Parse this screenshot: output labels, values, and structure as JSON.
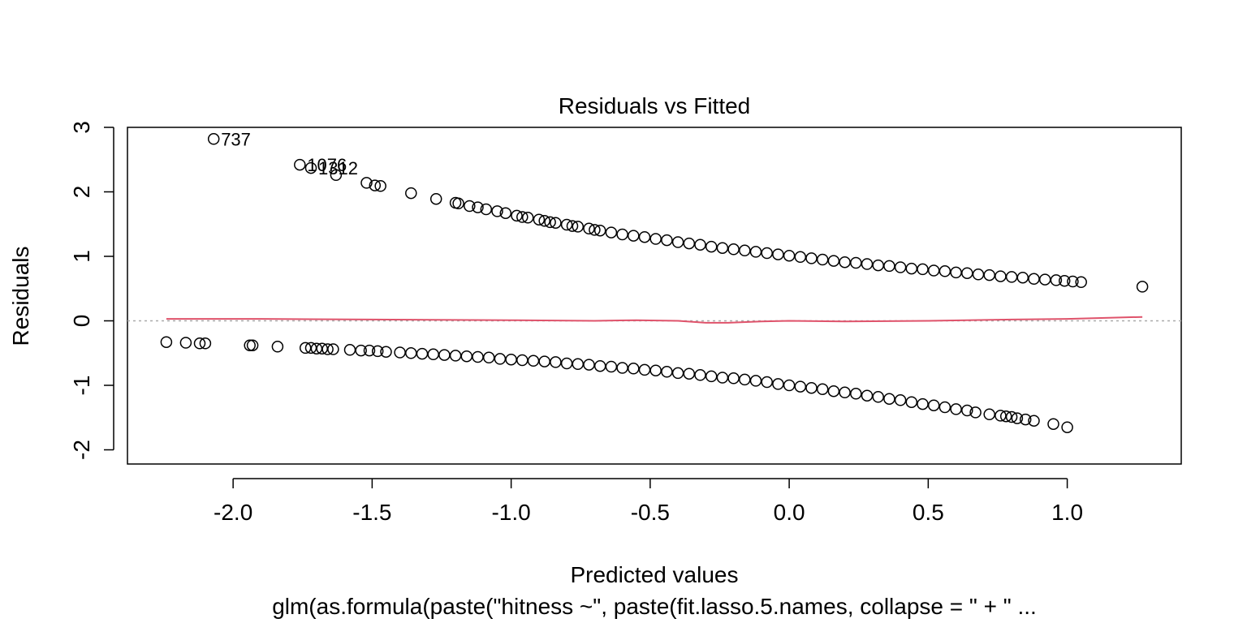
{
  "chart_data": {
    "type": "scatter",
    "title": "Residuals vs Fitted",
    "xlabel": "Predicted values",
    "ylabel": "Residuals",
    "subtitle": "glm(as.formula(paste(\"hitness ~\", paste(fit.lasso.5.names, collapse = \" + \" ...",
    "xlim": [
      -2.38,
      1.41
    ],
    "ylim": [
      -2.22,
      3.0
    ],
    "x_ticks": [
      -2.0,
      -1.5,
      -1.0,
      -0.5,
      0.0,
      0.5,
      1.0
    ],
    "x_tick_labels": [
      "-2.0",
      "-1.5",
      "-1.0",
      "-0.5",
      "0.0",
      "0.5",
      "1.0"
    ],
    "y_ticks": [
      -2,
      -1,
      0,
      1,
      2,
      3
    ],
    "y_tick_labels": [
      "-2",
      "-1",
      "0",
      "1",
      "2",
      "3"
    ],
    "reference_line": {
      "y": 0,
      "style": "dotted",
      "color": "#aaaaaa"
    },
    "colors": {
      "points": "#000000",
      "smoother": "#df536b"
    },
    "series": [
      {
        "marker": "open-circle",
        "x": [
          -2.07,
          -1.76,
          -1.72,
          -1.63,
          -1.52,
          -1.49,
          -1.47,
          -1.36,
          -1.27,
          -1.2,
          -1.19,
          -1.15,
          -1.12,
          -1.09,
          -1.05,
          -1.02,
          -0.98,
          -0.96,
          -0.94,
          -0.9,
          -0.88,
          -0.86,
          -0.84,
          -0.8,
          -0.78,
          -0.76,
          -0.72,
          -0.7,
          -0.68,
          -0.64,
          -0.6,
          -0.56,
          -0.52,
          -0.48,
          -0.44,
          -0.4,
          -0.36,
          -0.32,
          -0.28,
          -0.24,
          -0.2,
          -0.16,
          -0.12,
          -0.08,
          -0.04,
          0.0,
          0.04,
          0.08,
          0.12,
          0.16,
          0.2,
          0.24,
          0.28,
          0.32,
          0.36,
          0.4,
          0.44,
          0.48,
          0.52,
          0.56,
          0.6,
          0.64,
          0.68,
          0.72,
          0.76,
          0.8,
          0.84,
          0.88,
          0.92,
          0.96,
          0.99,
          1.02,
          1.05,
          1.27,
          -2.24,
          -2.17,
          -2.12,
          -2.1,
          -1.94,
          -1.93,
          -1.84,
          -1.74,
          -1.72,
          -1.7,
          -1.68,
          -1.66,
          -1.64,
          -1.58,
          -1.54,
          -1.51,
          -1.48,
          -1.45,
          -1.4,
          -1.36,
          -1.32,
          -1.28,
          -1.24,
          -1.2,
          -1.16,
          -1.12,
          -1.08,
          -1.04,
          -1.0,
          -0.96,
          -0.92,
          -0.88,
          -0.84,
          -0.8,
          -0.76,
          -0.72,
          -0.68,
          -0.64,
          -0.6,
          -0.56,
          -0.52,
          -0.48,
          -0.44,
          -0.4,
          -0.36,
          -0.32,
          -0.28,
          -0.24,
          -0.2,
          -0.16,
          -0.12,
          -0.08,
          -0.04,
          0.0,
          0.04,
          0.08,
          0.12,
          0.16,
          0.2,
          0.24,
          0.28,
          0.32,
          0.36,
          0.4,
          0.44,
          0.48,
          0.52,
          0.56,
          0.6,
          0.64,
          0.67,
          0.72,
          0.76,
          0.78,
          0.8,
          0.82,
          0.85,
          0.88,
          0.95,
          1.0
        ],
        "y": [
          2.82,
          2.42,
          2.37,
          2.26,
          2.14,
          2.1,
          2.09,
          1.98,
          1.89,
          1.83,
          1.82,
          1.78,
          1.76,
          1.73,
          1.7,
          1.67,
          1.63,
          1.61,
          1.6,
          1.57,
          1.55,
          1.53,
          1.52,
          1.49,
          1.47,
          1.46,
          1.43,
          1.41,
          1.4,
          1.37,
          1.34,
          1.32,
          1.3,
          1.27,
          1.25,
          1.22,
          1.2,
          1.18,
          1.15,
          1.13,
          1.11,
          1.09,
          1.07,
          1.05,
          1.03,
          1.01,
          0.99,
          0.97,
          0.95,
          0.93,
          0.91,
          0.9,
          0.88,
          0.86,
          0.85,
          0.83,
          0.81,
          0.8,
          0.78,
          0.77,
          0.75,
          0.74,
          0.72,
          0.71,
          0.69,
          0.68,
          0.67,
          0.65,
          0.64,
          0.63,
          0.62,
          0.61,
          0.6,
          0.53,
          -0.33,
          -0.34,
          -0.35,
          -0.35,
          -0.38,
          -0.38,
          -0.4,
          -0.42,
          -0.42,
          -0.43,
          -0.43,
          -0.44,
          -0.44,
          -0.45,
          -0.46,
          -0.46,
          -0.47,
          -0.48,
          -0.49,
          -0.5,
          -0.51,
          -0.52,
          -0.53,
          -0.54,
          -0.55,
          -0.56,
          -0.57,
          -0.59,
          -0.6,
          -0.61,
          -0.62,
          -0.63,
          -0.64,
          -0.66,
          -0.67,
          -0.68,
          -0.7,
          -0.71,
          -0.73,
          -0.74,
          -0.76,
          -0.77,
          -0.79,
          -0.81,
          -0.82,
          -0.84,
          -0.86,
          -0.88,
          -0.89,
          -0.91,
          -0.93,
          -0.95,
          -0.98,
          -1.0,
          -1.02,
          -1.04,
          -1.06,
          -1.09,
          -1.11,
          -1.13,
          -1.16,
          -1.18,
          -1.21,
          -1.23,
          -1.26,
          -1.29,
          -1.31,
          -1.34,
          -1.37,
          -1.39,
          -1.42,
          -1.45,
          -1.47,
          -1.48,
          -1.49,
          -1.51,
          -1.53,
          -1.55,
          -1.6,
          -1.65
        ]
      }
    ],
    "annotations": [
      {
        "label": "737",
        "x": -2.07,
        "y": 2.82
      },
      {
        "label": "1076",
        "x": -1.76,
        "y": 2.42
      },
      {
        "label": "1312",
        "x": -1.72,
        "y": 2.37
      }
    ],
    "smoother": {
      "x": [
        -2.24,
        -1.9,
        -1.5,
        -1.0,
        -0.7,
        -0.55,
        -0.4,
        -0.3,
        -0.22,
        -0.1,
        0.0,
        0.2,
        0.5,
        0.8,
        1.0,
        1.27
      ],
      "y": [
        0.03,
        0.03,
        0.02,
        0.01,
        0.0,
        0.01,
        0.0,
        -0.03,
        -0.03,
        -0.01,
        0.0,
        -0.01,
        0.0,
        0.02,
        0.03,
        0.06
      ]
    }
  }
}
